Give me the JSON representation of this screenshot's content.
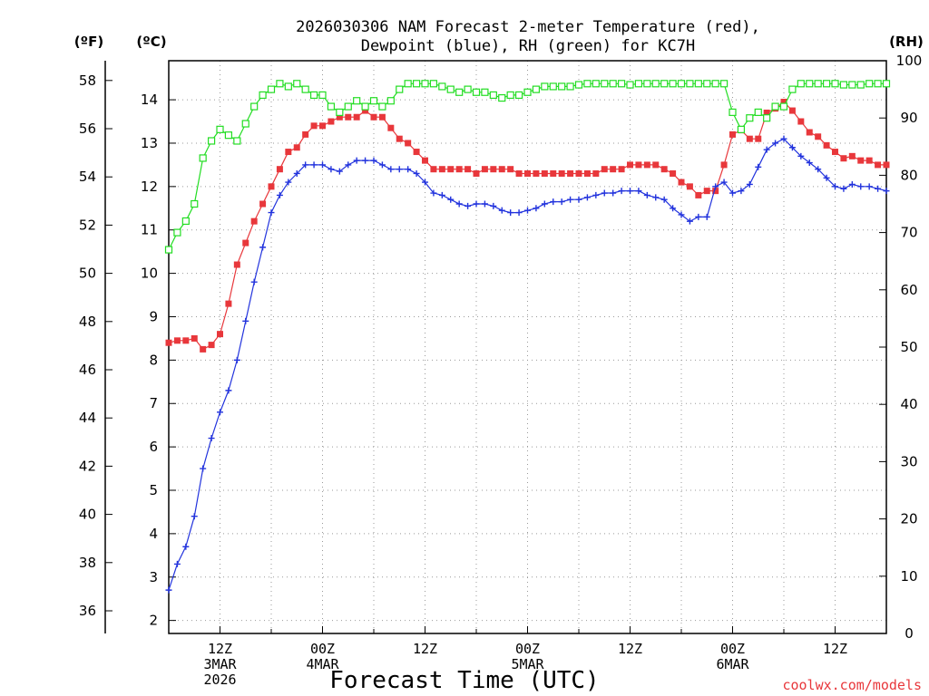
{
  "chart_data": {
    "type": "line",
    "title_lines": [
      "2026030306 NAM Forecast 2-meter Temperature (red),",
      "Dewpoint (blue), RH (green) for KC7H"
    ],
    "xlabel": "Forecast Time (UTC)",
    "watermark": "coolwx.com/models",
    "units": {
      "fahrenheit": "(ºF)",
      "celsius": "(ºC)",
      "rh": "(RH)"
    },
    "x_range_hours": [
      6,
      90
    ],
    "y_celsius_range": [
      1.7,
      14.9
    ],
    "y_rh_range": [
      0,
      100
    ],
    "grid": true,
    "fahrenheit_ticks": [
      "36",
      "38",
      "40",
      "42",
      "44",
      "46",
      "48",
      "50",
      "52",
      "54",
      "56",
      "58"
    ],
    "celsius_ticks": [
      "2",
      "3",
      "4",
      "5",
      "6",
      "7",
      "8",
      "9",
      "10",
      "11",
      "12",
      "13",
      "14"
    ],
    "rh_ticks": [
      "0",
      "10",
      "20",
      "30",
      "40",
      "50",
      "60",
      "70",
      "80",
      "90",
      "100"
    ],
    "x_ticks": [
      {
        "hour": 12,
        "lines": [
          "12Z",
          "3MAR",
          "2026"
        ]
      },
      {
        "hour": 24,
        "lines": [
          "00Z",
          "4MAR"
        ]
      },
      {
        "hour": 36,
        "lines": [
          "12Z"
        ]
      },
      {
        "hour": 48,
        "lines": [
          "00Z",
          "5MAR"
        ]
      },
      {
        "hour": 60,
        "lines": [
          "12Z"
        ]
      },
      {
        "hour": 72,
        "lines": [
          "00Z",
          "6MAR"
        ]
      },
      {
        "hour": 84,
        "lines": [
          "12Z"
        ]
      }
    ],
    "colors": {
      "temperature": "#e8373b",
      "dewpoint": "#2233dd",
      "rh": "#22dd22"
    },
    "series": [
      {
        "name": "Temperature",
        "units": "C",
        "values": [
          8.4,
          8.45,
          8.45,
          8.5,
          8.25,
          8.35,
          8.6,
          9.3,
          10.2,
          10.7,
          11.2,
          11.6,
          12.0,
          12.4,
          12.8,
          12.9,
          13.2,
          13.4,
          13.4,
          13.5,
          13.6,
          13.6,
          13.6,
          13.75,
          13.6,
          13.6,
          13.35,
          13.1,
          13.0,
          12.8,
          12.6,
          12.4,
          12.4,
          12.4,
          12.4,
          12.4,
          12.3,
          12.4,
          12.4,
          12.4,
          12.4,
          12.3,
          12.3,
          12.3,
          12.3,
          12.3,
          12.3,
          12.3,
          12.3,
          12.3,
          12.3,
          12.4,
          12.4,
          12.4,
          12.5,
          12.5,
          12.5,
          12.5,
          12.4,
          12.3,
          12.1,
          12.0,
          11.8,
          11.9,
          11.9,
          12.5,
          13.2,
          13.3,
          13.1,
          13.1,
          13.7,
          13.8,
          13.95,
          13.75,
          13.5,
          13.25,
          13.15,
          12.95,
          12.8,
          12.65,
          12.7,
          12.6,
          12.6,
          12.5,
          12.5
        ]
      },
      {
        "name": "Dewpoint",
        "units": "C",
        "values": [
          2.7,
          3.3,
          3.7,
          4.4,
          5.5,
          6.2,
          6.8,
          7.3,
          8.0,
          8.9,
          9.8,
          10.6,
          11.4,
          11.8,
          12.1,
          12.3,
          12.5,
          12.5,
          12.5,
          12.4,
          12.35,
          12.5,
          12.6,
          12.6,
          12.6,
          12.5,
          12.4,
          12.4,
          12.4,
          12.3,
          12.1,
          11.85,
          11.8,
          11.7,
          11.6,
          11.55,
          11.6,
          11.6,
          11.55,
          11.45,
          11.4,
          11.4,
          11.45,
          11.5,
          11.6,
          11.65,
          11.65,
          11.7,
          11.7,
          11.75,
          11.8,
          11.85,
          11.85,
          11.9,
          11.9,
          11.9,
          11.8,
          11.75,
          11.7,
          11.5,
          11.35,
          11.2,
          11.3,
          11.3,
          12.0,
          12.1,
          11.85,
          11.9,
          12.05,
          12.45,
          12.85,
          13.0,
          13.1,
          12.9,
          12.7,
          12.55,
          12.4,
          12.2,
          12.0,
          11.95,
          12.05,
          12.0,
          12.0,
          11.95,
          11.9
        ]
      },
      {
        "name": "RH",
        "units": "%",
        "values": [
          67,
          70,
          72,
          75,
          83,
          86,
          88,
          87,
          86,
          89,
          92,
          94,
          95,
          96,
          95.5,
          96,
          95,
          94,
          94,
          92,
          91,
          92,
          93,
          92,
          93,
          92,
          93,
          95,
          96,
          96,
          96,
          96,
          95.5,
          95,
          94.5,
          95,
          94.5,
          94.5,
          94,
          93.5,
          94,
          94,
          94.5,
          95,
          95.5,
          95.5,
          95.5,
          95.5,
          95.8,
          96,
          96,
          96,
          96,
          96,
          95.8,
          96,
          96,
          96,
          96,
          96,
          96,
          96,
          96,
          96,
          96,
          96,
          91,
          88,
          90,
          91,
          90,
          92,
          92,
          95,
          96,
          96,
          96,
          96,
          96,
          95.8,
          95.8,
          95.8,
          96,
          96,
          96
        ]
      }
    ]
  }
}
